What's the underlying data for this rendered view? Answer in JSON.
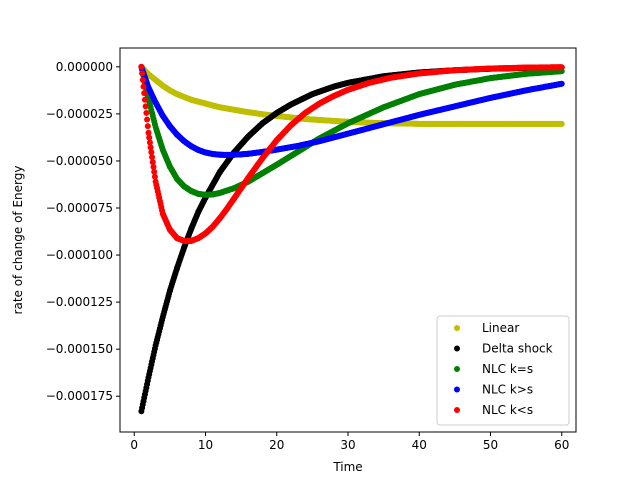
{
  "chart_data": {
    "type": "scatter",
    "title": "",
    "xlabel": "Time",
    "ylabel": "rate of change of Energy",
    "xlim": [
      -2,
      62
    ],
    "ylim": [
      -0.000194,
      1e-05
    ],
    "xticks": [
      0,
      10,
      20,
      30,
      40,
      50,
      60
    ],
    "xtick_labels": [
      "0",
      "10",
      "20",
      "30",
      "40",
      "50",
      "60"
    ],
    "yticks": [
      0.0,
      -2.5e-05,
      -5e-05,
      -7.5e-05,
      -0.0001,
      -0.000125,
      -0.00015,
      -0.000175
    ],
    "ytick_labels": [
      "0.000000",
      "−0.000025",
      "−0.000050",
      "−0.000075",
      "−0.000100",
      "−0.000125",
      "−0.000150",
      "−0.000175"
    ],
    "grid": false,
    "legend_position": "bottom-right",
    "series": [
      {
        "name": "Linear",
        "color": "#bfbf00",
        "x": [
          1,
          2,
          3,
          4,
          5,
          6,
          8,
          10,
          12,
          15,
          18,
          21,
          24,
          27,
          30,
          33,
          36,
          39,
          40,
          45,
          50,
          55,
          60
        ],
        "y": [
          0,
          -4e-06,
          -7e-06,
          -1e-05,
          -1.25e-05,
          -1.45e-05,
          -1.75e-05,
          -1.95e-05,
          -2.15e-05,
          -2.35e-05,
          -2.52e-05,
          -2.65e-05,
          -2.77e-05,
          -2.85e-05,
          -2.92e-05,
          -2.97e-05,
          -3e-05,
          -3.02e-05,
          -3.03e-05,
          -3.03e-05,
          -3.03e-05,
          -3.03e-05,
          -3.03e-05
        ]
      },
      {
        "name": "Delta shock",
        "color": "#000000",
        "x": [
          1,
          2,
          3,
          4,
          5,
          6,
          7,
          8,
          9,
          10,
          12,
          14,
          16,
          18,
          20,
          22,
          25,
          28,
          30,
          35,
          40,
          45,
          50,
          55,
          60
        ],
        "y": [
          -0.000183,
          -0.000165,
          -0.000148,
          -0.000133,
          -0.000119,
          -0.000107,
          -9.6e-05,
          -8.6e-05,
          -7.7e-05,
          -6.95e-05,
          -5.6e-05,
          -4.55e-05,
          -3.7e-05,
          -3e-05,
          -2.45e-05,
          -2e-05,
          -1.45e-05,
          -1.05e-05,
          -8.5e-06,
          -5e-06,
          -3e-06,
          -1.8e-06,
          -1e-06,
          -6e-07,
          -3e-07
        ]
      },
      {
        "name": "NLC k=s",
        "color": "#008000",
        "x": [
          1,
          2,
          3,
          4,
          5,
          6,
          7,
          8,
          9,
          10,
          11,
          12,
          14,
          16,
          18,
          20,
          23,
          26,
          30,
          35,
          40,
          45,
          50,
          55,
          60
        ],
        "y": [
          0,
          -1.7e-05,
          -3.2e-05,
          -4.4e-05,
          -5.3e-05,
          -5.95e-05,
          -6.35e-05,
          -6.6e-05,
          -6.75e-05,
          -6.8e-05,
          -6.78e-05,
          -6.7e-05,
          -6.45e-05,
          -6.1e-05,
          -5.65e-05,
          -5.2e-05,
          -4.5e-05,
          -3.8e-05,
          -3e-05,
          -2.15e-05,
          -1.45e-05,
          -9.5e-06,
          -6e-06,
          -3.7e-06,
          -2.3e-06
        ]
      },
      {
        "name": "NLC k>s",
        "color": "#0000ff",
        "x": [
          1,
          2,
          3,
          4,
          5,
          6,
          7,
          8,
          9,
          10,
          11,
          12,
          13,
          14,
          15,
          16,
          18,
          20,
          23,
          26,
          30,
          35,
          40,
          45,
          50,
          55,
          60
        ],
        "y": [
          0,
          -1.1e-05,
          -1.9e-05,
          -2.6e-05,
          -3.15e-05,
          -3.6e-05,
          -3.95e-05,
          -4.22e-05,
          -4.42e-05,
          -4.55e-05,
          -4.63e-05,
          -4.67e-05,
          -4.68e-05,
          -4.67e-05,
          -4.65e-05,
          -4.62e-05,
          -4.52e-05,
          -4.4e-05,
          -4.2e-05,
          -3.95e-05,
          -3.55e-05,
          -3.05e-05,
          -2.55e-05,
          -2.1e-05,
          -1.65e-05,
          -1.25e-05,
          -9e-06
        ]
      },
      {
        "name": "NLC k<s",
        "color": "#ff0000",
        "x": [
          1,
          2,
          3,
          4,
          5,
          6,
          7,
          8,
          9,
          10,
          11,
          12,
          13,
          14,
          15,
          16,
          18,
          20,
          22,
          24,
          26,
          28,
          30,
          33,
          36,
          40,
          45,
          50,
          55,
          60
        ],
        "y": [
          0,
          -3.5e-05,
          -6.1e-05,
          -7.8e-05,
          -8.65e-05,
          -9.1e-05,
          -9.25e-05,
          -9.25e-05,
          -9.1e-05,
          -8.85e-05,
          -8.5e-05,
          -8.05e-05,
          -7.55e-05,
          -7e-05,
          -6.45e-05,
          -5.9e-05,
          -4.85e-05,
          -3.9e-05,
          -3.1e-05,
          -2.45e-05,
          -1.95e-05,
          -1.55e-05,
          -1.22e-05,
          -8.5e-06,
          -5.8e-06,
          -3.5e-06,
          -1.8e-06,
          -9e-07,
          -4e-07,
          -2e-07
        ]
      }
    ]
  }
}
